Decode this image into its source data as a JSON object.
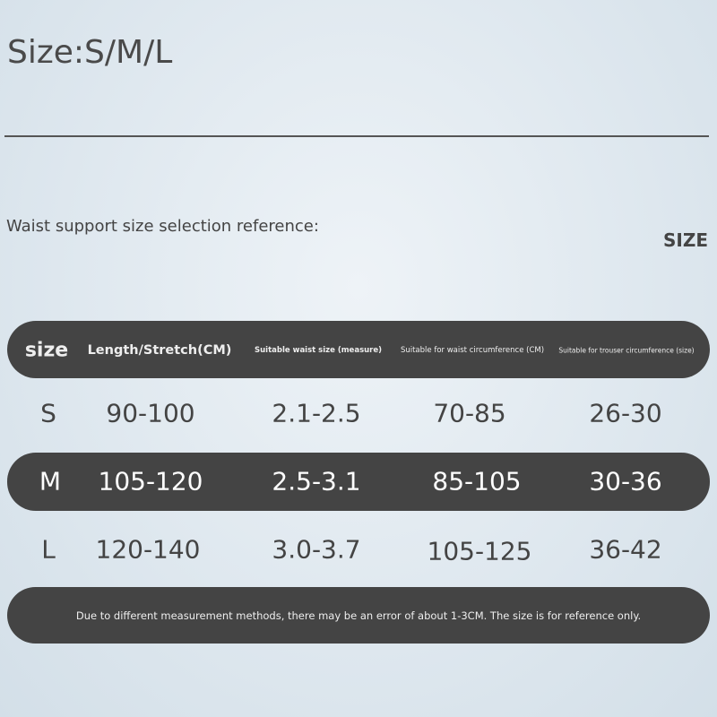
{
  "title": "Size:S/M/L",
  "subtitle": "Waist support size selection reference:",
  "size_label": "SIZE",
  "table": {
    "headers": [
      "size",
      "Length/Stretch(CM)",
      "Suitable waist size (measure)",
      "Suitable for waist circumference (CM)",
      "Suitable for trouser circumference (size)"
    ],
    "rows": [
      [
        "S",
        "90-100",
        "2.1-2.5",
        "70-85",
        "26-30"
      ],
      [
        "M",
        "105-120",
        "2.5-3.1",
        "85-105",
        "30-36"
      ],
      [
        "L",
        "120-140",
        "3.0-3.7",
        "105-125",
        "36-42"
      ]
    ]
  },
  "footnote": "Due to different measurement methods, there may be an error of about 1-3CM. The size is for reference only.",
  "colors": {
    "bar": "#444444",
    "background": "#dfe8ef"
  }
}
